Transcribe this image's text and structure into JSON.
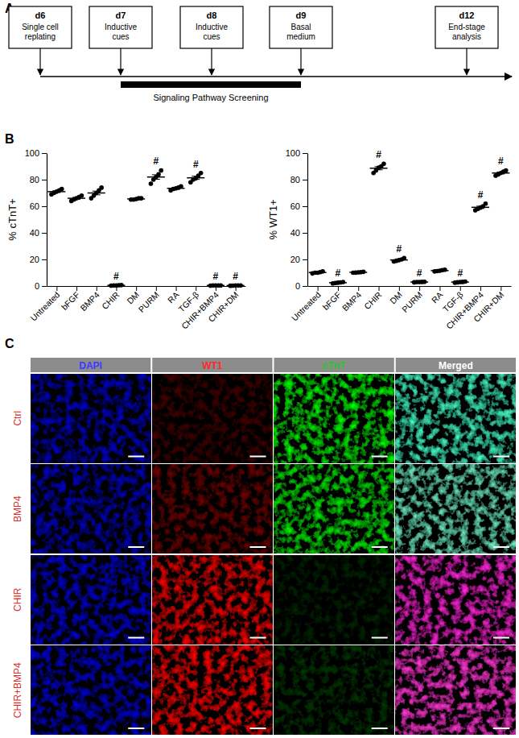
{
  "panels": [
    "A",
    "B",
    "C"
  ],
  "timeline": {
    "events": [
      {
        "day": "d6",
        "label": [
          "Single cell",
          "replating"
        ]
      },
      {
        "day": "d7",
        "label": [
          "Inductive",
          "cues"
        ]
      },
      {
        "day": "d8",
        "label": [
          "Inductive",
          "cues"
        ]
      },
      {
        "day": "d9",
        "label": [
          "Basal",
          "medium"
        ]
      },
      {
        "day": "d12",
        "label": [
          "End-stage",
          "analysis"
        ]
      }
    ],
    "bar_label": "Signaling Pathway Screening"
  },
  "chart_data": [
    {
      "type": "strip",
      "y_label": "% cTnT+",
      "color": "#000000",
      "categories": [
        "Untreated",
        "bFGF",
        "BMP4",
        "CHIR",
        "DM",
        "PURM",
        "RA",
        "TGF-β",
        "CHIR+BMP4",
        "CHIR+DM"
      ],
      "points": [
        [
          69,
          70,
          71,
          72,
          73
        ],
        [
          64,
          65,
          66,
          67,
          68
        ],
        [
          66,
          68,
          70,
          72,
          74
        ],
        [
          0.3,
          0.4,
          0.5,
          0.6,
          0.7
        ],
        [
          65,
          65,
          65.5,
          66,
          66
        ],
        [
          77,
          80,
          82,
          84,
          87
        ],
        [
          72,
          73,
          73.5,
          74,
          75
        ],
        [
          78,
          80,
          81,
          83,
          85
        ],
        [
          0.3,
          0.4,
          0.4,
          0.5,
          0.5
        ],
        [
          0.2,
          0.3,
          0.4,
          0.4,
          0.5
        ]
      ],
      "means": [
        71,
        66,
        70,
        0.5,
        65.5,
        82,
        73.5,
        81.4,
        0.42,
        0.36
      ],
      "errors": [
        0.7,
        0.7,
        1.4,
        0.07,
        0.2,
        1.7,
        0.5,
        1.2,
        0.04,
        0.05
      ],
      "annotations": [
        null,
        null,
        null,
        "#",
        null,
        "#",
        null,
        "#",
        "#",
        "#"
      ],
      "ylim": [
        0,
        100
      ],
      "yticks": [
        0,
        20,
        40,
        60,
        80,
        100
      ]
    },
    {
      "type": "strip",
      "y_label": "% WT1+",
      "color": "#000000",
      "categories": [
        "Untreated",
        "bFGF",
        "BMP4",
        "CHIR",
        "DM",
        "PURM",
        "RA",
        "TGF-β",
        "CHIR+BMP4",
        "CHIR+DM"
      ],
      "points": [
        [
          9.5,
          10,
          10,
          10.5,
          11
        ],
        [
          2,
          2.3,
          2.5,
          2.7,
          3
        ],
        [
          10,
          10.1,
          10.3,
          10.5,
          10.7
        ],
        [
          85,
          87,
          89,
          90,
          92
        ],
        [
          18.5,
          19,
          19.5,
          20,
          21
        ],
        [
          2.8,
          3,
          3,
          3.1,
          3.2
        ],
        [
          11,
          11.2,
          11.5,
          12,
          12.3
        ],
        [
          2.5,
          2.8,
          3,
          3.1,
          3.3
        ],
        [
          57,
          58,
          59,
          60,
          62
        ],
        [
          83,
          84,
          85,
          86,
          87
        ]
      ],
      "means": [
        10.2,
        2.5,
        10.32,
        88.6,
        19.6,
        3.02,
        11.6,
        2.94,
        59.2,
        85
      ],
      "errors": [
        0.25,
        0.17,
        0.13,
        1.2,
        0.43,
        0.07,
        0.24,
        0.14,
        0.86,
        0.71
      ],
      "annotations": [
        null,
        "#",
        null,
        "#",
        "#",
        "#",
        null,
        "#",
        "#",
        "#"
      ],
      "ylim": [
        0,
        100
      ],
      "yticks": [
        0,
        20,
        40,
        60,
        80,
        100
      ]
    }
  ],
  "image_grid": {
    "columns": [
      "DAPI",
      "WT1",
      "cTnT",
      "Merged"
    ],
    "colors": [
      "#3b3bff",
      "#ff2a2a",
      "#25c925",
      "#ffffff"
    ],
    "rows": [
      "Ctrl",
      "BMP4",
      "CHIR",
      "CHIR+BMP4"
    ],
    "color": "#d9302a"
  }
}
